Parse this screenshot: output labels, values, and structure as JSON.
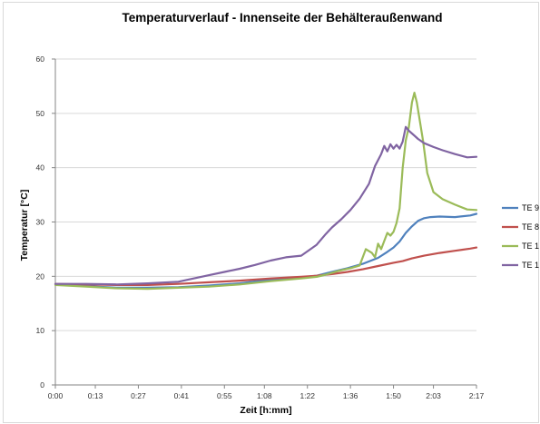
{
  "chart_data": {
    "type": "line",
    "title": "Temperaturverlauf -  Innenseite der Behälteraußenwand",
    "xlabel": "Zeit [h:mm]",
    "ylabel": "Temperatur [°C]",
    "x_tick_labels": [
      "0:00",
      "0:13",
      "0:27",
      "0:41",
      "0:55",
      "1:08",
      "1:22",
      "1:36",
      "1:50",
      "2:03",
      "2:17"
    ],
    "x_tick_minutes": [
      0,
      13,
      27,
      41,
      55,
      68,
      82,
      96,
      110,
      123,
      137
    ],
    "xlim": [
      0,
      137
    ],
    "ylim": [
      0,
      60
    ],
    "y_ticks": [
      0,
      10,
      20,
      30,
      40,
      50,
      60
    ],
    "grid": "horizontal",
    "legend_position": "right",
    "series": [
      {
        "name": "TE 9",
        "color": "#4f81bd",
        "x": [
          0,
          10,
          20,
          30,
          40,
          50,
          60,
          70,
          80,
          85,
          90,
          95,
          100,
          105,
          108,
          110,
          112,
          114,
          116,
          118,
          120,
          122,
          125,
          130,
          135,
          137
        ],
        "y": [
          18.5,
          18.2,
          17.9,
          17.9,
          18.0,
          18.3,
          18.7,
          19.4,
          19.8,
          20.1,
          20.8,
          21.5,
          22.3,
          23.4,
          24.5,
          25.3,
          26.4,
          28.0,
          29.2,
          30.2,
          30.7,
          30.9,
          31.0,
          30.9,
          31.2,
          31.5
        ]
      },
      {
        "name": "TE 8",
        "color": "#c0504d",
        "x": [
          0,
          10,
          20,
          30,
          40,
          50,
          60,
          70,
          80,
          85,
          90,
          95,
          100,
          105,
          110,
          113,
          116,
          120,
          125,
          130,
          135,
          137
        ],
        "y": [
          18.6,
          18.5,
          18.4,
          18.4,
          18.6,
          18.9,
          19.2,
          19.6,
          19.9,
          20.1,
          20.4,
          20.8,
          21.3,
          21.9,
          22.5,
          22.8,
          23.3,
          23.8,
          24.3,
          24.7,
          25.1,
          25.3
        ]
      },
      {
        "name": "TE 1",
        "color": "#9bbb59",
        "x": [
          0,
          10,
          20,
          30,
          40,
          50,
          60,
          70,
          80,
          85,
          88,
          92,
          96,
          99,
          100,
          101,
          103,
          104,
          105,
          106,
          107,
          108,
          109,
          110,
          111,
          112,
          113,
          114,
          115,
          116,
          116.8,
          117.6,
          118.6,
          119.6,
          121,
          123,
          126,
          130,
          134,
          137
        ],
        "y": [
          18.4,
          18.1,
          17.8,
          17.7,
          17.9,
          18.1,
          18.5,
          19.1,
          19.6,
          19.9,
          20.3,
          21.0,
          21.5,
          22.0,
          23.5,
          25.0,
          24.3,
          23.5,
          26.0,
          25.0,
          26.5,
          28.0,
          27.5,
          28.2,
          29.8,
          32.5,
          40.0,
          45.0,
          47.5,
          52.0,
          53.8,
          52.0,
          48.5,
          45.0,
          39.0,
          35.5,
          34.2,
          33.2,
          32.3,
          32.2
        ]
      },
      {
        "name": "TE 1",
        "color": "#8064a2",
        "x": [
          0,
          10,
          20,
          30,
          40,
          45,
          50,
          55,
          60,
          65,
          70,
          75,
          80,
          85,
          88,
          90,
          93,
          96,
          99,
          102,
          104,
          106,
          107,
          108,
          109,
          110,
          111,
          112,
          113,
          114,
          115,
          116,
          117,
          118,
          120,
          123,
          126,
          130,
          134,
          137
        ],
        "y": [
          18.6,
          18.6,
          18.5,
          18.7,
          19.0,
          19.6,
          20.2,
          20.8,
          21.4,
          22.1,
          22.9,
          23.5,
          23.8,
          25.8,
          27.8,
          29.0,
          30.5,
          32.2,
          34.3,
          37.0,
          40.3,
          42.5,
          44.0,
          43.0,
          44.3,
          43.5,
          44.2,
          43.5,
          44.8,
          47.5,
          46.8,
          46.3,
          45.8,
          45.3,
          44.5,
          43.8,
          43.2,
          42.5,
          41.9,
          42.0
        ]
      }
    ]
  }
}
